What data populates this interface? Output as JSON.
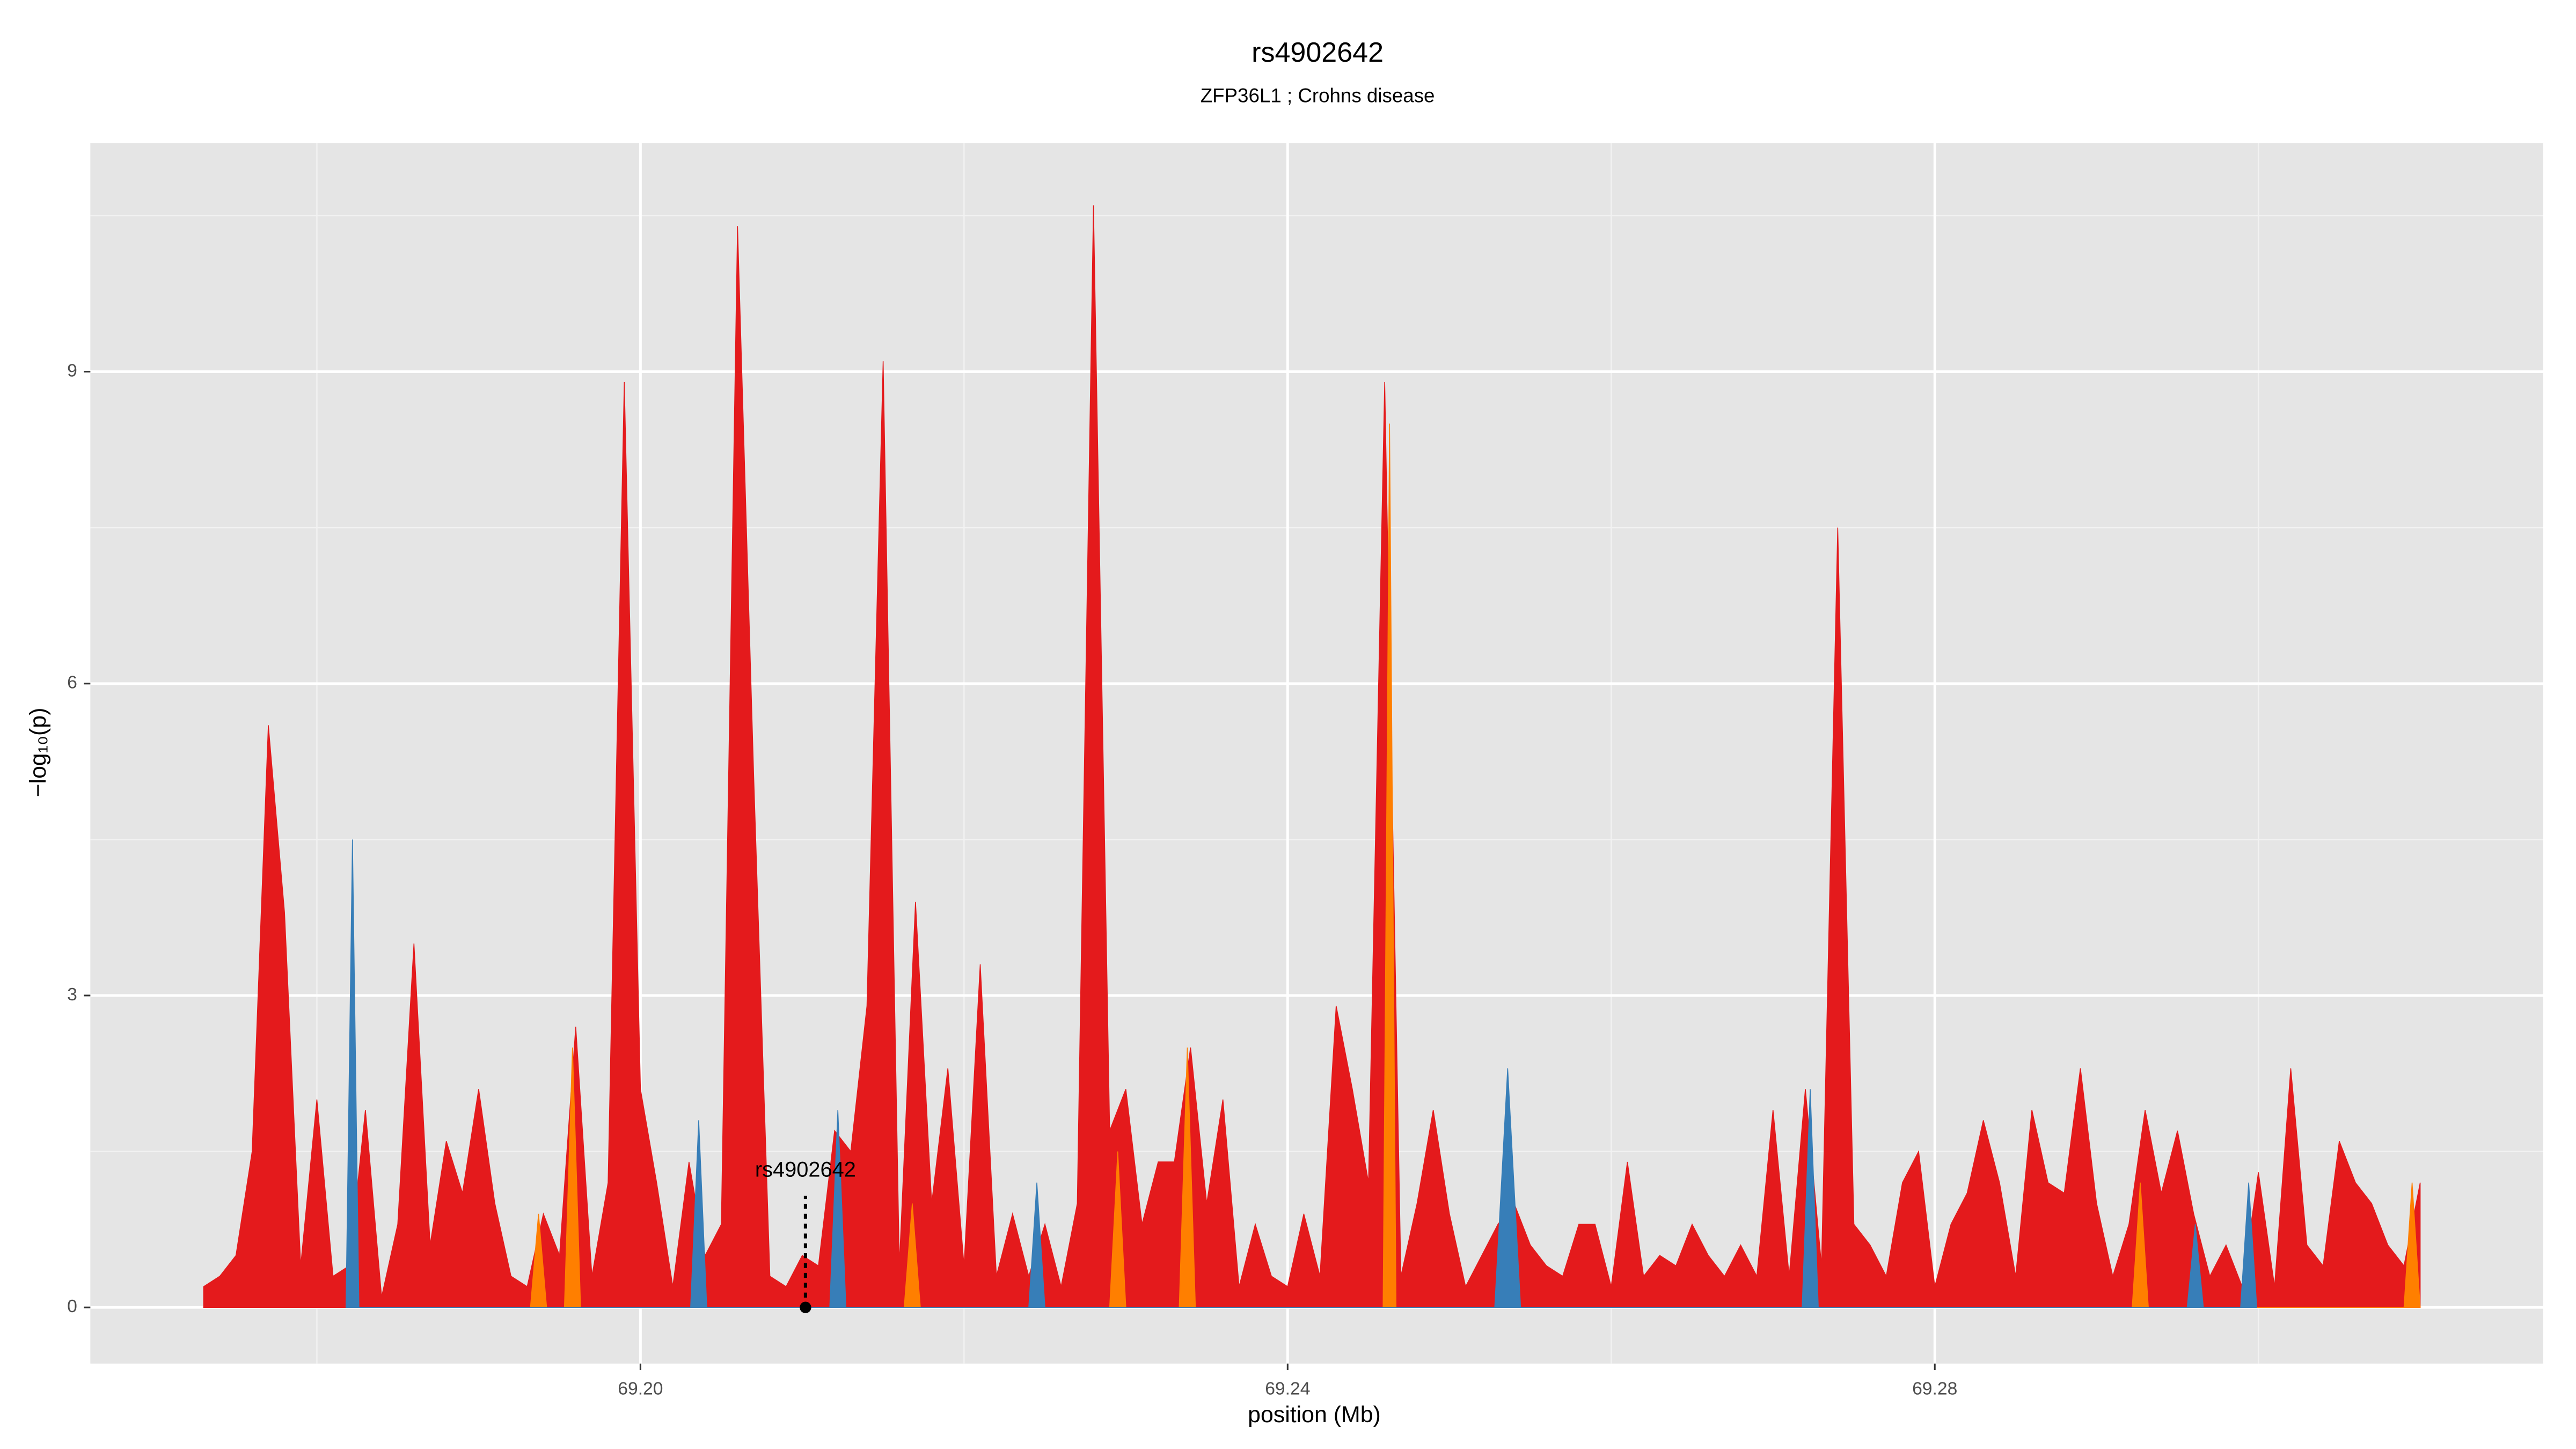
{
  "chart_data": {
    "type": "area",
    "title": "rs4902642",
    "subtitle": "ZFP36L1 ; Crohns disease",
    "x_label": "position (Mb)",
    "y_label": "−log₁₀(p)",
    "xlim": [
      69.166,
      69.3176
    ],
    "ylim": [
      -0.54,
      11.2
    ],
    "xticks": [
      {
        "value": 69.2,
        "label": "69.20"
      },
      {
        "value": 69.24,
        "label": "69.24"
      },
      {
        "value": 69.28,
        "label": "69.28"
      }
    ],
    "yticks": [
      0,
      3,
      6,
      9
    ],
    "grid": true,
    "series": [
      {
        "color": "#e41a1c",
        "x": [
          69.173,
          69.174,
          69.175,
          69.176,
          69.177,
          69.178,
          69.179,
          69.18,
          69.181,
          69.182,
          69.183,
          69.184,
          69.185,
          69.186,
          69.187,
          69.188,
          69.189,
          69.19,
          69.191,
          69.192,
          69.193,
          69.194,
          69.195,
          69.196,
          69.197,
          69.198,
          69.199,
          69.2,
          69.201,
          69.202,
          69.203,
          69.204,
          69.205,
          69.206,
          69.207,
          69.208,
          69.209,
          69.21,
          69.211,
          69.212,
          69.213,
          69.214,
          69.215,
          69.216,
          69.217,
          69.218,
          69.219,
          69.22,
          69.221,
          69.222,
          69.223,
          69.224,
          69.225,
          69.226,
          69.227,
          69.228,
          69.229,
          69.23,
          69.231,
          69.232,
          69.233,
          69.234,
          69.235,
          69.236,
          69.237,
          69.238,
          69.239,
          69.24,
          69.241,
          69.242,
          69.243,
          69.244,
          69.245,
          69.246,
          69.247,
          69.248,
          69.249,
          69.25,
          69.251,
          69.252,
          69.253,
          69.254,
          69.255,
          69.256,
          69.257,
          69.258,
          69.259,
          69.26,
          69.261,
          69.262,
          69.263,
          69.264,
          69.265,
          69.266,
          69.267,
          69.268,
          69.269,
          69.27,
          69.271,
          69.272,
          69.273,
          69.274,
          69.275,
          69.276,
          69.277,
          69.278,
          69.279,
          69.28,
          69.281,
          69.282,
          69.283,
          69.284,
          69.285,
          69.286,
          69.287,
          69.288,
          69.289,
          69.29,
          69.291,
          69.292,
          69.293,
          69.294,
          69.295,
          69.296,
          69.297,
          69.298,
          69.299,
          69.3,
          69.301,
          69.302,
          69.303,
          69.304,
          69.305,
          69.306,
          69.307,
          69.308,
          69.309,
          69.31
        ],
        "values": [
          0.2,
          0.3,
          0.5,
          1.5,
          5.6,
          3.8,
          0.4,
          2.0,
          0.3,
          0.4,
          1.9,
          0.1,
          0.8,
          3.5,
          0.6,
          1.6,
          1.1,
          2.1,
          1.0,
          0.3,
          0.2,
          0.9,
          0.5,
          2.7,
          0.3,
          1.2,
          8.9,
          2.1,
          1.2,
          0.2,
          1.4,
          0.5,
          0.8,
          10.4,
          5.1,
          0.3,
          0.2,
          0.5,
          0.4,
          1.7,
          1.5,
          2.9,
          9.1,
          0.4,
          3.9,
          1.0,
          2.3,
          0.4,
          3.3,
          0.3,
          0.9,
          0.3,
          0.8,
          0.2,
          1.0,
          10.6,
          1.7,
          2.1,
          0.8,
          1.4,
          1.4,
          2.5,
          1.0,
          2.0,
          0.2,
          0.8,
          0.3,
          0.2,
          0.9,
          0.3,
          2.9,
          2.1,
          1.2,
          8.9,
          0.3,
          1.0,
          1.9,
          0.9,
          0.2,
          0.5,
          0.8,
          1.0,
          0.6,
          0.4,
          0.3,
          0.8,
          0.8,
          0.2,
          1.4,
          0.3,
          0.5,
          0.4,
          0.8,
          0.5,
          0.3,
          0.6,
          0.3,
          1.9,
          0.3,
          2.1,
          0.4,
          7.5,
          0.8,
          0.6,
          0.3,
          1.2,
          1.5,
          0.2,
          0.8,
          1.1,
          1.8,
          1.2,
          0.3,
          1.9,
          1.2,
          1.1,
          2.3,
          1.0,
          0.3,
          0.8,
          1.9,
          1.1,
          1.7,
          0.9,
          0.3,
          0.6,
          0.2,
          1.3,
          0.2,
          2.3,
          0.6,
          0.4,
          1.6,
          1.2,
          1.0,
          0.6,
          0.4,
          1.2
        ]
      },
      {
        "color": "#ff7f00",
        "x": [
          69.1932,
          69.1937,
          69.1942,
          69.1953,
          69.1958,
          69.1963,
          69.2163,
          69.2168,
          69.2173,
          69.229,
          69.2295,
          69.23,
          69.2333,
          69.2338,
          69.2343,
          69.2459,
          69.2463,
          69.2467,
          69.2922,
          69.2927,
          69.2932,
          69.309,
          69.3095,
          69.31
        ],
        "values": [
          0,
          0.9,
          0,
          0,
          2.5,
          0,
          0,
          1.0,
          0,
          0,
          1.5,
          0,
          0,
          2.5,
          0,
          0,
          8.5,
          0,
          0,
          1.2,
          0,
          0,
          1.2,
          0
        ]
      },
      {
        "color": "#377eb8",
        "x": [
          69.1818,
          69.1822,
          69.1826,
          69.2031,
          69.2036,
          69.2041,
          69.2117,
          69.2122,
          69.2127,
          69.224,
          69.2245,
          69.225,
          69.2528,
          69.2536,
          69.2544,
          69.2718,
          69.2723,
          69.2728,
          69.2956,
          69.2961,
          69.2966,
          69.2989,
          69.2994,
          69.2999
        ],
        "values": [
          0,
          4.5,
          0,
          0,
          1.8,
          0,
          0,
          1.9,
          0,
          0,
          1.2,
          0,
          0,
          2.3,
          0,
          0,
          2.1,
          0,
          0,
          0.8,
          0,
          0,
          1.2,
          0
        ]
      }
    ],
    "annotations": [
      {
        "label": "rs4902642",
        "x": 69.2102,
        "y": 0
      }
    ]
  }
}
